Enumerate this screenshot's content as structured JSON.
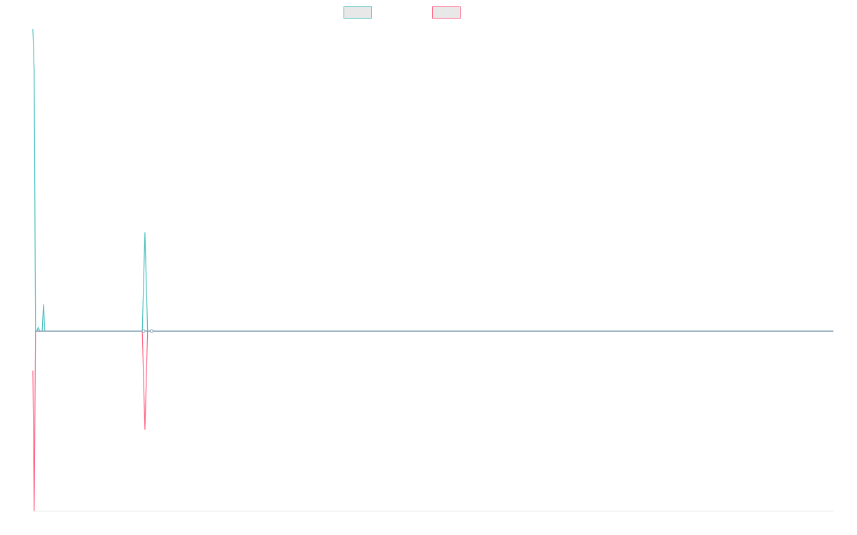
{
  "colors": {
    "teal": "#4bc0c0",
    "pink": "#ff6384",
    "axis": "#e6e6e6",
    "zero_line": "#7a9cb0"
  },
  "legend": [
    {
      "label": "",
      "color": "#4bc0c0",
      "fill": "#e8e8e8"
    },
    {
      "label": "",
      "color": "#ff6384",
      "fill": "#e8e8e8"
    }
  ],
  "chart_data": {
    "type": "line",
    "title": "",
    "xlabel": "",
    "ylabel": "",
    "grid": false,
    "legend_position": "top",
    "x_count": 300,
    "ylim": [
      -100,
      170
    ],
    "series": [
      {
        "color": "#4bc0c0",
        "points": [
          [
            0,
            168
          ],
          [
            0.5,
            145
          ],
          [
            1,
            0
          ],
          [
            1.5,
            0
          ],
          [
            2,
            2
          ],
          [
            2.6,
            0
          ],
          [
            3,
            0
          ],
          [
            3.5,
            0
          ],
          [
            4,
            15
          ],
          [
            4.5,
            0
          ],
          [
            5,
            0
          ],
          [
            40,
            0
          ],
          [
            41,
            0
          ],
          [
            42,
            55
          ],
          [
            43,
            0
          ],
          [
            44,
            0
          ],
          [
            300,
            0
          ]
        ]
      },
      {
        "color": "#ff6384",
        "points": [
          [
            0,
            -22
          ],
          [
            0.5,
            -100
          ],
          [
            1,
            0
          ],
          [
            3,
            0
          ],
          [
            41,
            0
          ],
          [
            42,
            -55
          ],
          [
            43,
            0
          ],
          [
            44,
            0
          ],
          [
            300,
            0
          ]
        ]
      }
    ],
    "markers": [
      {
        "x": 41.5,
        "y": 0
      },
      {
        "x": 44.5,
        "y": 0
      }
    ]
  }
}
